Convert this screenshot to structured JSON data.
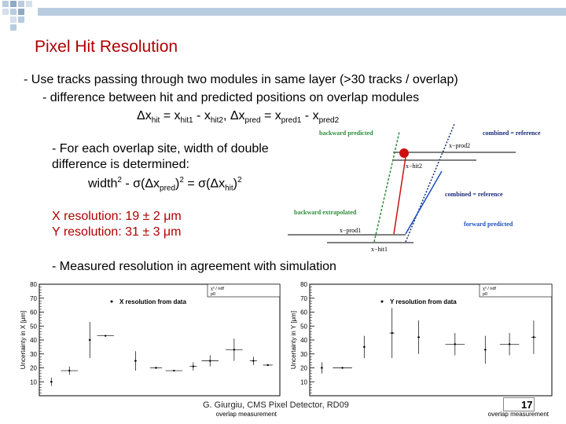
{
  "title": "Pixel Hit Resolution",
  "bullets": {
    "b1": "- Use tracks passing through two modules in same layer (>30 tracks / overlap)",
    "b1_sub": "- difference between hit and predicted positions on overlap modules",
    "eq_dx_hit": "Δx",
    "eq_hit_sub": "hit",
    "eq_eq1": " = x",
    "eq_hit1_sub": "hit1",
    "eq_minus1": " - x",
    "eq_hit2_sub": "hit2",
    "eq_comma": ",   Δx",
    "eq_pred_sub": "pred",
    "eq_eq2": " = x",
    "eq_pred1_sub": "pred1",
    "eq_minus2": " - x",
    "eq_pred2_sub": "pred2",
    "b2_line1": "- For each overlap site, width of double",
    "b2_line2": "difference is determined:",
    "b2_width": "width",
    "b2_rest1": " - σ(Δx",
    "b2_pred": "pred",
    "b2_rest2": ")",
    "b2_rest3": " = σ(Δx",
    "b2_hit": "hit",
    "b2_rest4": ")",
    "sup2": "2",
    "x_res": "X resolution: 19 ± 2 μm",
    "y_res": "Y resolution:  31 ± 3 μm",
    "b3": "- Measured resolution in agreement with simulation"
  },
  "diagram": {
    "backward_predicted": "backward predicted",
    "combined_reference_top": "combined = reference",
    "x_prod2": "x−prod2",
    "x_hit2": "x−hit2",
    "combined_reference_mid": "combined = reference",
    "backward_extrapolated": "backward extrapolated",
    "forward_predicted": "forward predicted",
    "x_prod1": "x−prod1",
    "x_hit1": "x−hit1",
    "colors": {
      "green": "#2e8b3a",
      "red": "#cc1111",
      "blue": "#1a4fc0",
      "navy": "#1a2a7a"
    }
  },
  "chart_data": [
    {
      "type": "scatter",
      "title": "",
      "legend": "X resolution from data",
      "ylabel": "Uncertainty in X [μm]",
      "xlabel": "overlap measurement",
      "ylim": [
        0,
        80
      ],
      "yticks": [
        "10",
        "20",
        "30",
        "40",
        "50",
        "60",
        "70",
        "80"
      ],
      "stats_lines": [
        "χ² / ndf",
        "p0"
      ],
      "points": [
        {
          "x": 1,
          "y": 10,
          "xerr": 0.1,
          "yerr": 3
        },
        {
          "x": 2.5,
          "y": 18,
          "xerr": 0.7,
          "yerr": 3
        },
        {
          "x": 4.2,
          "y": 40,
          "xerr": 0.1,
          "yerr": 13
        },
        {
          "x": 5.5,
          "y": 43,
          "xerr": 0.7,
          "yerr": 0
        },
        {
          "x": 8,
          "y": 25,
          "xerr": 0.1,
          "yerr": 7
        },
        {
          "x": 9.7,
          "y": 20,
          "xerr": 0.5,
          "yerr": 0
        },
        {
          "x": 11.2,
          "y": 18,
          "xerr": 0.7,
          "yerr": 0
        },
        {
          "x": 12.8,
          "y": 21,
          "xerr": 0.3,
          "yerr": 3
        },
        {
          "x": 14.2,
          "y": 25,
          "xerr": 0.7,
          "yerr": 4
        },
        {
          "x": 16.2,
          "y": 33,
          "xerr": 0.7,
          "yerr": 8
        },
        {
          "x": 17.8,
          "y": 25,
          "xerr": 0.3,
          "yerr": 3
        },
        {
          "x": 19,
          "y": 22,
          "xerr": 0.4,
          "yerr": 0
        }
      ],
      "xlim": [
        0,
        20
      ]
    },
    {
      "type": "scatter",
      "title": "",
      "legend": "Y resolution from data",
      "ylabel": "Uncertainty in Y [μm]",
      "xlabel": "overlap measurement",
      "ylim": [
        0,
        80
      ],
      "yticks": [
        "10",
        "20",
        "30",
        "40",
        "50",
        "60",
        "70",
        "80"
      ],
      "stats_lines": [
        "χ² / ndf",
        "p0"
      ],
      "points": [
        {
          "x": 1,
          "y": 20,
          "xerr": 0.1,
          "yerr": 4
        },
        {
          "x": 2.7,
          "y": 20,
          "xerr": 0.8,
          "yerr": 0
        },
        {
          "x": 4.5,
          "y": 35,
          "xerr": 0.1,
          "yerr": 8
        },
        {
          "x": 6.8,
          "y": 45,
          "xerr": 0.2,
          "yerr": 18
        },
        {
          "x": 9,
          "y": 42,
          "xerr": 0.1,
          "yerr": 12
        },
        {
          "x": 12,
          "y": 37,
          "xerr": 0.8,
          "yerr": 8
        },
        {
          "x": 14.5,
          "y": 33,
          "xerr": 0.1,
          "yerr": 10
        },
        {
          "x": 16.5,
          "y": 37,
          "xerr": 0.8,
          "yerr": 8
        },
        {
          "x": 18.5,
          "y": 42,
          "xerr": 0.2,
          "yerr": 12
        }
      ],
      "xlim": [
        0,
        20
      ]
    }
  ],
  "footer": "G. Giurgiu, CMS Pixel Detector, RD09",
  "page_number": "17"
}
